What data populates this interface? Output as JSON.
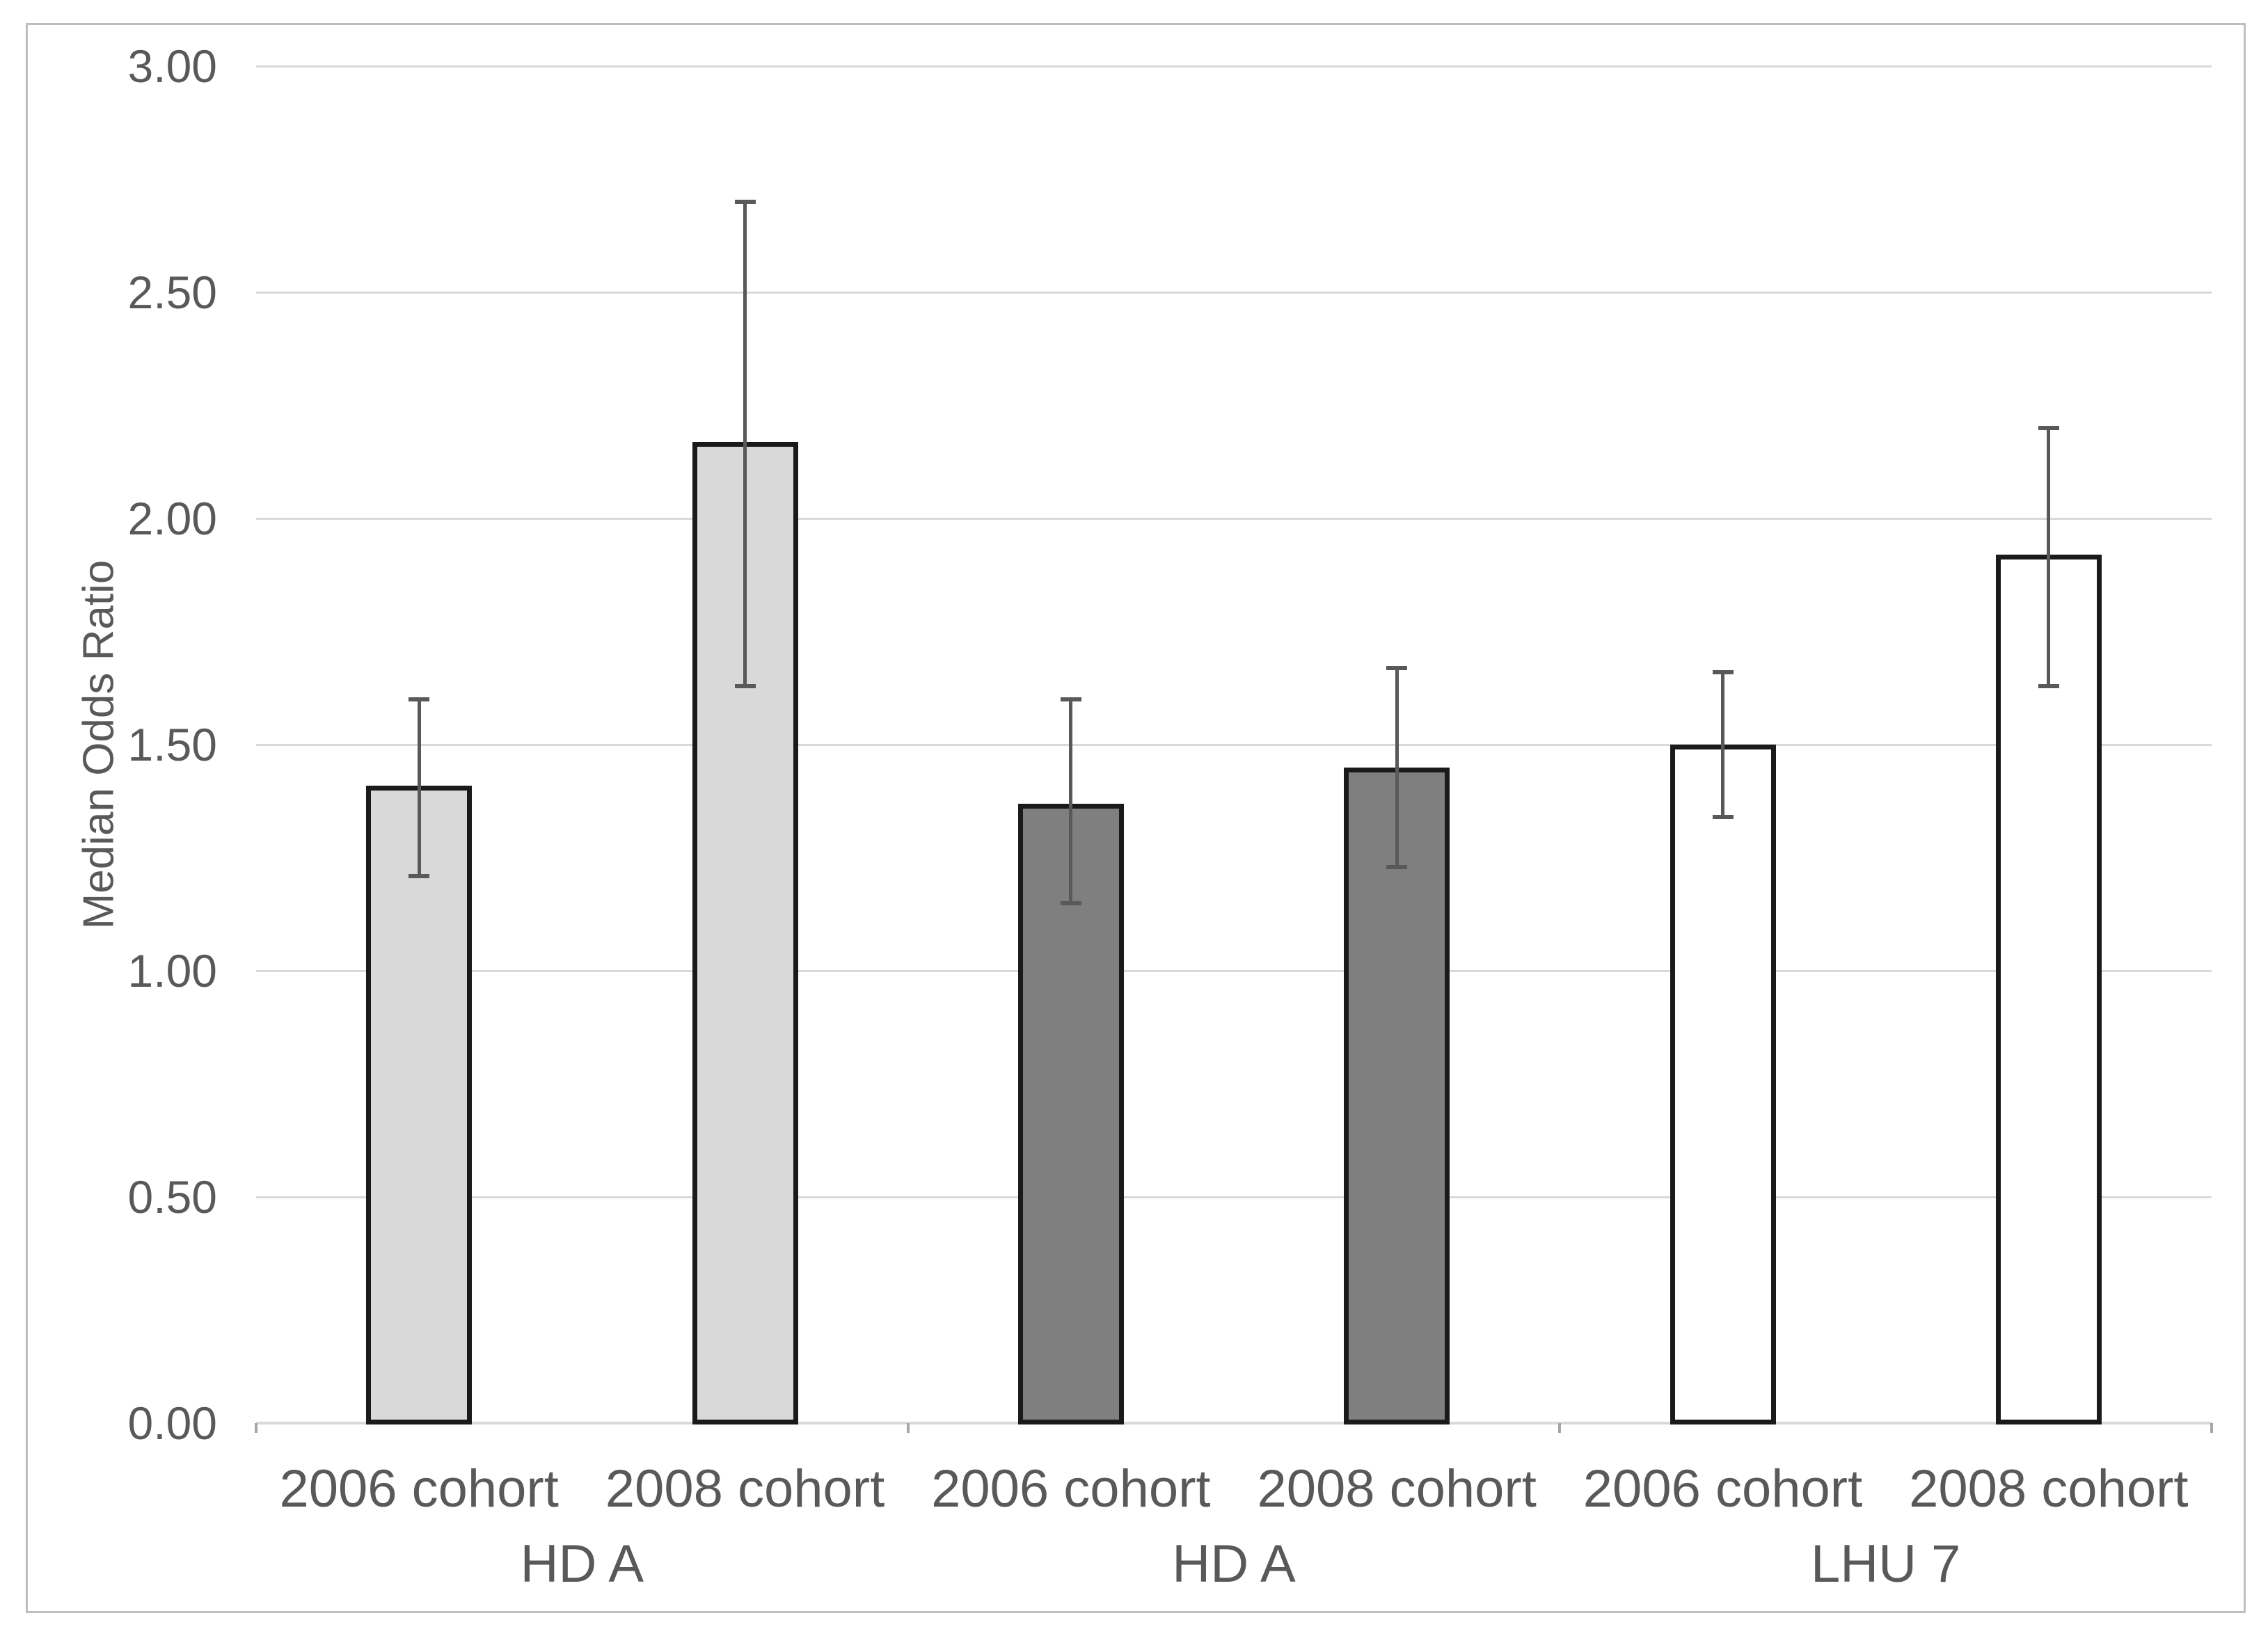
{
  "chart_data": {
    "type": "bar",
    "title": "",
    "xlabel": "",
    "ylabel": "Median Odds Ratio",
    "ylim": [
      0,
      3
    ],
    "ytick_step": 0.5,
    "ytick_labels": [
      "0.00",
      "0.50",
      "1.00",
      "1.50",
      "2.00",
      "2.50",
      "3.00"
    ],
    "grid": true,
    "legend_position": "none",
    "x_tick_labels": [
      "2006 cohort",
      "2008 cohort",
      "2006 cohort",
      "2008 cohort",
      "2006 cohort",
      "2008 cohort"
    ],
    "group_labels": [
      "HD A",
      "HD A",
      "LHU 7"
    ],
    "series": [
      {
        "name": "Median Odds Ratio",
        "values": [
          1.41,
          2.17,
          1.37,
          1.45,
          1.5,
          1.92
        ]
      }
    ],
    "error_bars": {
      "low": [
        1.21,
        1.63,
        1.15,
        1.23,
        1.34,
        1.63
      ],
      "high": [
        1.6,
        2.7,
        1.6,
        1.67,
        1.66,
        2.2
      ]
    },
    "bar_fills": [
      "#d9d9d9",
      "#d9d9d9",
      "#7f7f7f",
      "#7f7f7f",
      "#ffffff",
      "#ffffff"
    ],
    "colors": {
      "bar_border": "#1a1a1a",
      "error_bar": "#595959",
      "gridline": "#d9d9d9",
      "axis_line": "#d9d9d9",
      "group_tick": "#a6a6a6",
      "text": "#595959",
      "frame_border": "#bfbfbf",
      "background": "#ffffff"
    }
  }
}
